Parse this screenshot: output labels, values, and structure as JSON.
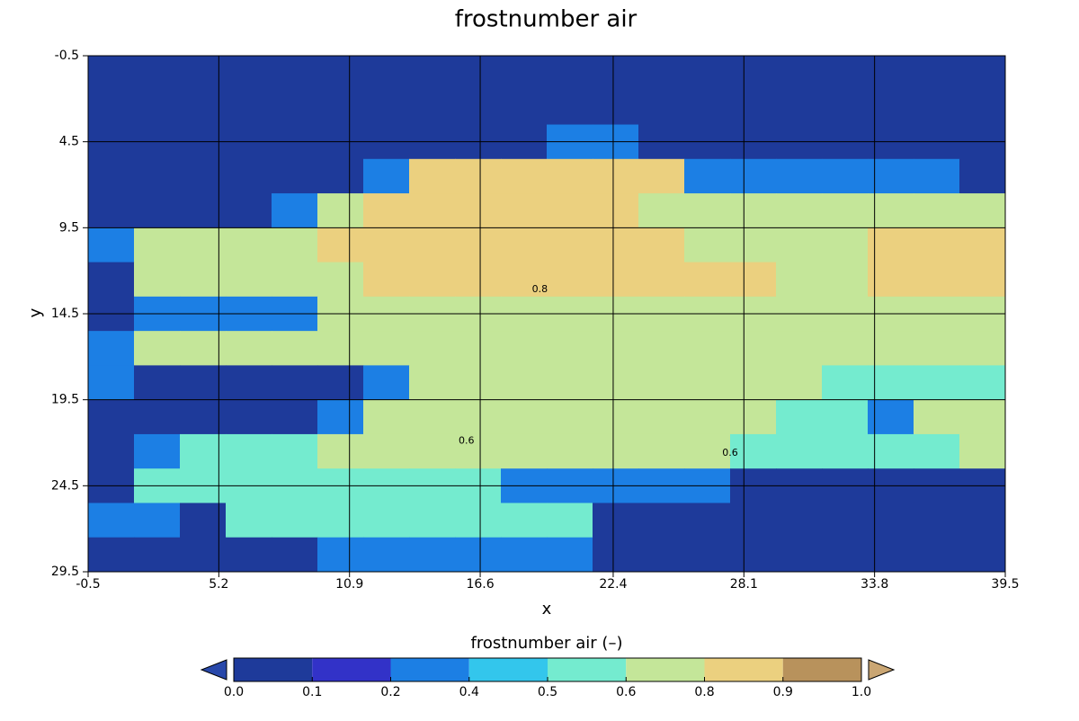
{
  "chart_data": {
    "type": "contour",
    "title": "frostnumber  air",
    "x_label": "x",
    "y_label": "y",
    "xlim": [
      -0.5,
      39.5
    ],
    "ylim": [
      -0.5,
      29.5
    ],
    "y_inverted": true,
    "xticks": [
      -0.5,
      5.2,
      10.9,
      16.6,
      22.4,
      28.1,
      33.8,
      39.5
    ],
    "yticks": [
      -0.5,
      4.5,
      9.5,
      14.5,
      19.5,
      24.5,
      29.5
    ],
    "grid": true,
    "x": [
      0.5,
      2.5,
      4.5,
      6.5,
      8.5,
      10.5,
      12.5,
      14.5,
      16.5,
      18.5,
      20.5,
      22.5,
      24.5,
      26.5,
      28.5,
      30.5,
      32.5,
      34.5,
      36.5,
      38.5
    ],
    "y": [
      0.5,
      2.5,
      4.5,
      6.5,
      8.5,
      10.5,
      12.5,
      14.5,
      16.5,
      18.5,
      20.5,
      22.5,
      24.5,
      26.5,
      28.5
    ],
    "z": [
      [
        0.05,
        0.05,
        0.05,
        0.05,
        0.05,
        0.05,
        0.05,
        0.05,
        0.05,
        0.05,
        0.05,
        0.05,
        0.05,
        0.05,
        0.05,
        0.05,
        0.05,
        0.05,
        0.05,
        0.05
      ],
      [
        0.05,
        0.05,
        0.05,
        0.05,
        0.05,
        0.05,
        0.05,
        0.05,
        0.05,
        0.05,
        0.05,
        0.05,
        0.05,
        0.05,
        0.05,
        0.05,
        0.05,
        0.05,
        0.05,
        0.05
      ],
      [
        0.05,
        0.05,
        0.05,
        0.05,
        0.05,
        0.05,
        0.05,
        0.05,
        0.05,
        0.05,
        0.3,
        0.3,
        0.05,
        0.05,
        0.05,
        0.05,
        0.05,
        0.05,
        0.05,
        0.05
      ],
      [
        0.05,
        0.05,
        0.05,
        0.05,
        0.05,
        0.05,
        0.3,
        0.85,
        0.85,
        0.85,
        0.85,
        0.85,
        0.85,
        0.3,
        0.3,
        0.3,
        0.3,
        0.3,
        0.3,
        0.05
      ],
      [
        0.05,
        0.05,
        0.05,
        0.05,
        0.3,
        0.7,
        0.85,
        0.85,
        0.85,
        0.85,
        0.85,
        0.85,
        0.7,
        0.7,
        0.7,
        0.7,
        0.7,
        0.7,
        0.7,
        0.7
      ],
      [
        0.3,
        0.7,
        0.7,
        0.7,
        0.7,
        0.85,
        0.85,
        0.85,
        0.85,
        0.85,
        0.85,
        0.85,
        0.85,
        0.7,
        0.7,
        0.7,
        0.7,
        0.85,
        0.85,
        0.85
      ],
      [
        0.05,
        0.7,
        0.7,
        0.7,
        0.7,
        0.7,
        0.85,
        0.85,
        0.85,
        0.85,
        0.85,
        0.85,
        0.85,
        0.85,
        0.85,
        0.7,
        0.7,
        0.85,
        0.85,
        0.85
      ],
      [
        0.05,
        0.3,
        0.3,
        0.3,
        0.3,
        0.7,
        0.7,
        0.7,
        0.7,
        0.7,
        0.7,
        0.7,
        0.7,
        0.7,
        0.7,
        0.7,
        0.7,
        0.7,
        0.7,
        0.7
      ],
      [
        0.3,
        0.7,
        0.7,
        0.7,
        0.7,
        0.7,
        0.7,
        0.7,
        0.7,
        0.7,
        0.7,
        0.7,
        0.7,
        0.7,
        0.7,
        0.7,
        0.7,
        0.7,
        0.7,
        0.7
      ],
      [
        0.3,
        0.05,
        0.05,
        0.05,
        0.05,
        0.05,
        0.3,
        0.7,
        0.7,
        0.7,
        0.7,
        0.7,
        0.7,
        0.7,
        0.7,
        0.7,
        0.55,
        0.55,
        0.55,
        0.55
      ],
      [
        0.05,
        0.05,
        0.05,
        0.05,
        0.05,
        0.3,
        0.7,
        0.7,
        0.7,
        0.7,
        0.7,
        0.7,
        0.7,
        0.7,
        0.7,
        0.55,
        0.55,
        0.3,
        0.7,
        0.7
      ],
      [
        0.05,
        0.3,
        0.55,
        0.55,
        0.55,
        0.7,
        0.7,
        0.7,
        0.7,
        0.7,
        0.7,
        0.7,
        0.7,
        0.7,
        0.55,
        0.55,
        0.55,
        0.55,
        0.55,
        0.7
      ],
      [
        0.05,
        0.55,
        0.55,
        0.55,
        0.55,
        0.55,
        0.55,
        0.55,
        0.55,
        0.3,
        0.3,
        0.3,
        0.3,
        0.3,
        0.05,
        0.05,
        0.05,
        0.05,
        0.05,
        0.05
      ],
      [
        0.3,
        0.3,
        0.05,
        0.55,
        0.55,
        0.55,
        0.55,
        0.55,
        0.55,
        0.55,
        0.55,
        0.05,
        0.05,
        0.05,
        0.05,
        0.05,
        0.05,
        0.05,
        0.05,
        0.05
      ],
      [
        0.05,
        0.05,
        0.05,
        0.05,
        0.05,
        0.3,
        0.3,
        0.3,
        0.3,
        0.3,
        0.3,
        0.05,
        0.05,
        0.05,
        0.05,
        0.05,
        0.05,
        0.05,
        0.05,
        0.05
      ]
    ],
    "annotations": [
      {
        "text": "0.8",
        "x": 19.2,
        "y": 13.1
      },
      {
        "text": "0.6",
        "x": 16.0,
        "y": 21.9
      },
      {
        "text": "0.6",
        "x": 27.5,
        "y": 22.6
      }
    ],
    "colorbar": {
      "label": "frostnumber  air (–)",
      "levels": [
        {
          "value": 0,
          "label": "0.0"
        },
        0.1,
        0.2,
        0.4,
        0.5,
        0.6,
        0.8,
        0.9,
        {
          "value": 1,
          "label": "1.0"
        }
      ],
      "colors": [
        "#1e3a9a",
        "#3232c8",
        "#1c7fe4",
        "#33c6ec",
        "#74ebcf",
        "#c4e699",
        "#ebd07f",
        "#b8925c"
      ],
      "extend": "both",
      "under_color": "#2848aa",
      "over_color": "#caa673"
    }
  }
}
